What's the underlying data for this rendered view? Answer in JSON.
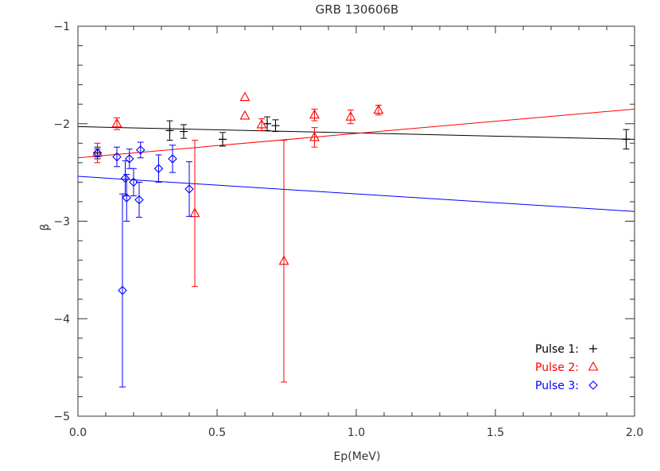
{
  "chart_data": {
    "type": "scatter",
    "title": "GRB 130606B",
    "xlabel": "Ep(MeV)",
    "ylabel": "β",
    "xlim": [
      0.0,
      2.0
    ],
    "ylim": [
      -5,
      -1
    ],
    "x_ticks": [
      {
        "value": 0.0,
        "label": "0.0"
      },
      {
        "value": 0.5,
        "label": "0.5"
      },
      {
        "value": 1.0,
        "label": "1.0"
      },
      {
        "value": 1.5,
        "label": "1.5"
      },
      {
        "value": 2.0,
        "label": "2.0"
      }
    ],
    "y_ticks": [
      {
        "value": -1,
        "label": "−1"
      },
      {
        "value": -2,
        "label": "−2"
      },
      {
        "value": -3,
        "label": "−3"
      },
      {
        "value": -4,
        "label": "−4"
      },
      {
        "value": -5,
        "label": "−5"
      }
    ],
    "grid": false,
    "legend_position": "bottom-right",
    "series": [
      {
        "name": "Pulse 1:",
        "symbol": "+",
        "marker": "plus",
        "color": "#000000",
        "points": [
          {
            "x": 0.07,
            "y": -2.3,
            "err": 0.06
          },
          {
            "x": 0.33,
            "y": -2.07,
            "err": 0.1
          },
          {
            "x": 0.38,
            "y": -2.08,
            "err": 0.07
          },
          {
            "x": 0.52,
            "y": -2.16,
            "err": 0.07
          },
          {
            "x": 0.68,
            "y": -2.0,
            "err": 0.07
          },
          {
            "x": 0.71,
            "y": -2.02,
            "err": 0.06
          },
          {
            "x": 1.97,
            "y": -2.16,
            "err": 0.1
          }
        ],
        "fit": {
          "x": [
            0.0,
            2.0
          ],
          "y": [
            -2.03,
            -2.16
          ]
        }
      },
      {
        "name": "Pulse 2:",
        "symbol": "△",
        "marker": "triangle",
        "color": "#ff0000",
        "points": [
          {
            "x": 0.07,
            "y": -2.3,
            "err": 0.1
          },
          {
            "x": 0.14,
            "y": -2.0,
            "err": 0.06
          },
          {
            "x": 0.42,
            "y": -2.92,
            "err": 0.75
          },
          {
            "x": 0.6,
            "y": -1.73,
            "err": 0.0
          },
          {
            "x": 0.6,
            "y": -1.92,
            "err": 0.0
          },
          {
            "x": 0.66,
            "y": -2.01,
            "err": 0.06
          },
          {
            "x": 0.74,
            "y": -3.41,
            "err": 1.24
          },
          {
            "x": 0.85,
            "y": -1.91,
            "err": 0.06
          },
          {
            "x": 0.85,
            "y": -2.14,
            "err": 0.1
          },
          {
            "x": 0.98,
            "y": -1.93,
            "err": 0.07
          },
          {
            "x": 1.08,
            "y": -1.86,
            "err": 0.05
          }
        ],
        "fit": {
          "x": [
            0.0,
            2.0
          ],
          "y": [
            -2.35,
            -1.85
          ]
        }
      },
      {
        "name": "Pulse 3:",
        "symbol": "◇",
        "marker": "diamond",
        "color": "#0000ff",
        "points": [
          {
            "x": 0.07,
            "y": -2.3,
            "err": 0.04
          },
          {
            "x": 0.14,
            "y": -2.34,
            "err": 0.1
          },
          {
            "x": 0.16,
            "y": -3.71,
            "err": 0.99
          },
          {
            "x": 0.17,
            "y": -2.56,
            "err": 0.18
          },
          {
            "x": 0.175,
            "y": -2.76,
            "err": 0.24
          },
          {
            "x": 0.185,
            "y": -2.36,
            "err": 0.1
          },
          {
            "x": 0.2,
            "y": -2.6,
            "err": 0.14
          },
          {
            "x": 0.22,
            "y": -2.78,
            "err": 0.18
          },
          {
            "x": 0.225,
            "y": -2.27,
            "err": 0.08
          },
          {
            "x": 0.29,
            "y": -2.46,
            "err": 0.14
          },
          {
            "x": 0.34,
            "y": -2.36,
            "err": 0.14
          },
          {
            "x": 0.4,
            "y": -2.67,
            "err": 0.28
          }
        ],
        "fit": {
          "x": [
            0.0,
            2.0
          ],
          "y": [
            -2.54,
            -2.9
          ]
        }
      }
    ]
  }
}
